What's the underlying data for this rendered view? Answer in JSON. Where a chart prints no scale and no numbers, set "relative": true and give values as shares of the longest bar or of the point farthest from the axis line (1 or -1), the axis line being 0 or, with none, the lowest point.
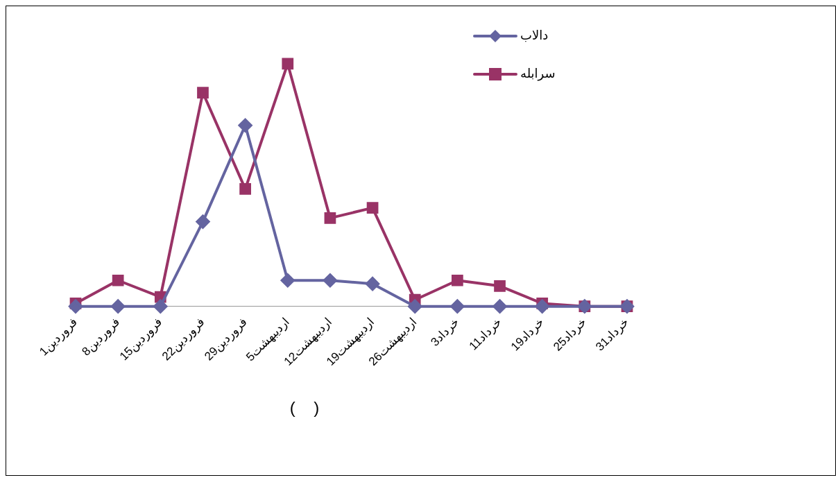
{
  "chart_data": {
    "type": "line",
    "relative": true,
    "categories": [
      "1فروردین",
      "8فروردین",
      "15فروردین",
      "22فروردین",
      "29فروردین",
      "5اردیبهشت",
      "12اردیبهشت",
      "19اردیبهشت",
      "26اردیبهشت",
      "3خرداد",
      "11خرداد",
      "19خرداد",
      "25خرداد",
      "31خرداد"
    ],
    "series": [
      {
        "name": "دالاب",
        "color": "#6464a0",
        "marker": "diamond",
        "values": [
          0,
          0,
          0,
          0.349,
          0.746,
          0.107,
          0.107,
          0.093,
          0,
          0,
          0,
          0,
          0,
          0
        ]
      },
      {
        "name": "سرابله",
        "color": "#993366",
        "marker": "square",
        "values": [
          0.012,
          0.107,
          0.039,
          0.881,
          0.484,
          1,
          0.364,
          0.406,
          0.027,
          0.107,
          0.084,
          0.012,
          0,
          0
        ]
      }
    ],
    "legend": "top right",
    "grid": false,
    "annotations": [
      "(    )"
    ]
  }
}
